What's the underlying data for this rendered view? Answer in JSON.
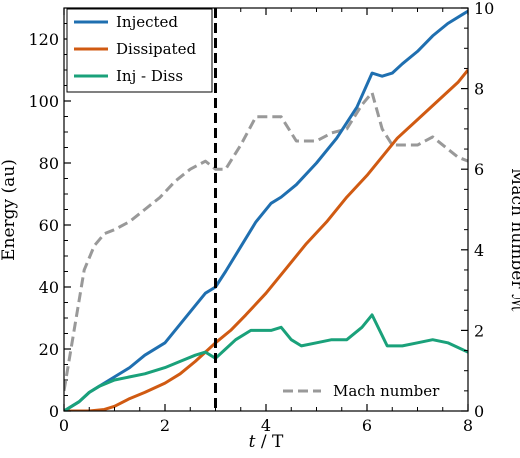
{
  "chart_data": {
    "type": "line",
    "xlabel": "t / T",
    "ylabel": "Energy (au)",
    "y2label": "Mach number ℳ",
    "xlim": [
      0,
      8
    ],
    "ylim": [
      0,
      130
    ],
    "y2lim": [
      0,
      10
    ],
    "xticks": [
      "0",
      "2",
      "4",
      "6",
      "8"
    ],
    "yticks": [
      "0",
      "20",
      "40",
      "60",
      "80",
      "100",
      "120"
    ],
    "y2ticks": [
      "0",
      "2",
      "4",
      "6",
      "8",
      "10"
    ],
    "vline": {
      "x": 3.0,
      "style": "dashed",
      "color": "#000000"
    },
    "legend": {
      "placement": "top-left",
      "entries": [
        "Injected",
        "Dissipated",
        "Inj - Diss"
      ]
    },
    "legend2": {
      "placement": "bottom-right",
      "entries": [
        "Mach number"
      ]
    },
    "series": [
      {
        "name": "Injected",
        "axis": "left",
        "color": "#1f6fb0",
        "x": [
          0,
          0.3,
          0.5,
          0.7,
          1.0,
          1.3,
          1.6,
          2.0,
          2.3,
          2.6,
          2.8,
          3.0,
          3.2,
          3.5,
          3.8,
          4.1,
          4.3,
          4.6,
          5.0,
          5.4,
          5.8,
          6.1,
          6.3,
          6.5,
          6.7,
          7.0,
          7.3,
          7.6,
          7.9,
          8.0
        ],
        "y": [
          0,
          3,
          6,
          8,
          11,
          14,
          18,
          22,
          28,
          34,
          38,
          40,
          45,
          53,
          61,
          67,
          69,
          73,
          80,
          88,
          98,
          109,
          108,
          109,
          112,
          116,
          121,
          125,
          128,
          129
        ]
      },
      {
        "name": "Dissipated",
        "axis": "left",
        "color": "#d05a12",
        "x": [
          0,
          0.5,
          0.8,
          1.0,
          1.3,
          1.6,
          2.0,
          2.3,
          2.6,
          2.8,
          3.0,
          3.3,
          3.6,
          4.0,
          4.4,
          4.8,
          5.2,
          5.6,
          6.0,
          6.3,
          6.6,
          7.0,
          7.4,
          7.8,
          8.0
        ],
        "y": [
          0,
          0,
          0.5,
          1.5,
          4,
          6,
          9,
          12,
          16,
          19,
          22,
          26,
          31,
          38,
          46,
          54,
          61,
          69,
          76,
          82,
          88,
          94,
          100,
          106,
          110
        ]
      },
      {
        "name": "Inj - Diss",
        "axis": "left",
        "color": "#1aa17a",
        "x": [
          0,
          0.3,
          0.5,
          0.7,
          1.0,
          1.3,
          1.6,
          2.0,
          2.3,
          2.6,
          2.8,
          3.0,
          3.2,
          3.4,
          3.7,
          3.9,
          4.1,
          4.3,
          4.5,
          4.7,
          5.0,
          5.3,
          5.6,
          5.9,
          6.1,
          6.25,
          6.4,
          6.7,
          7.0,
          7.3,
          7.6,
          8.0
        ],
        "y": [
          0,
          3,
          6,
          8,
          10,
          11,
          12,
          14,
          16,
          18,
          19,
          17,
          20,
          23,
          26,
          26,
          26,
          27,
          23,
          21,
          22,
          23,
          23,
          27,
          31,
          26,
          21,
          21,
          22,
          23,
          22,
          19
        ]
      },
      {
        "name": "Mach number",
        "axis": "right",
        "color": "#999999",
        "dashed": true,
        "x": [
          0,
          0.2,
          0.4,
          0.6,
          0.8,
          1.0,
          1.3,
          1.6,
          1.9,
          2.2,
          2.5,
          2.8,
          3.0,
          3.2,
          3.5,
          3.8,
          4.0,
          4.3,
          4.6,
          5.0,
          5.3,
          5.6,
          5.9,
          6.1,
          6.3,
          6.5,
          6.8,
          7.0,
          7.3,
          7.6,
          7.8,
          8.0
        ],
        "y": [
          0.5,
          2.0,
          3.5,
          4.1,
          4.4,
          4.5,
          4.7,
          5.0,
          5.3,
          5.7,
          6.0,
          6.2,
          6.0,
          6.0,
          6.6,
          7.3,
          7.3,
          7.3,
          6.7,
          6.7,
          6.9,
          7.0,
          7.6,
          7.9,
          7.0,
          6.6,
          6.6,
          6.6,
          6.8,
          6.5,
          6.3,
          6.2
        ]
      }
    ]
  }
}
